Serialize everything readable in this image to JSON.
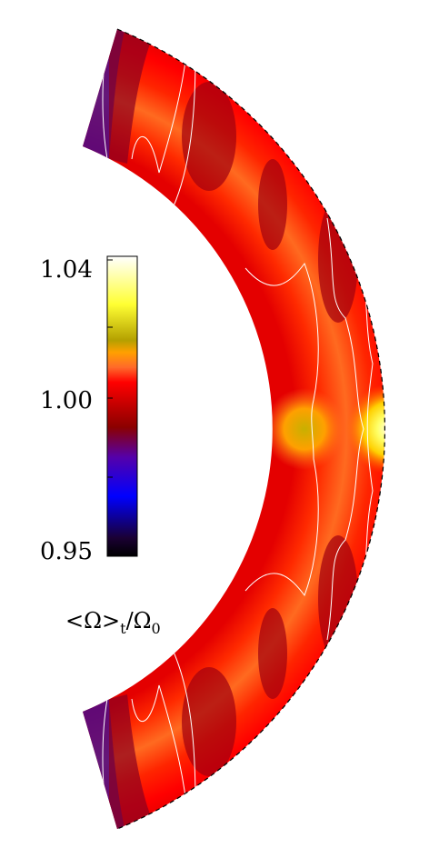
{
  "colorbar": {
    "ticks": [
      {
        "value": 1.04,
        "label": "1.04"
      },
      {
        "value": 1.0,
        "label": "1.00"
      },
      {
        "value": 0.95,
        "label": "0.95"
      }
    ],
    "title_main": "<Ω>",
    "title_sub": "t",
    "title_slash": "/Ω",
    "title_sub2": "0",
    "range": [
      0.95,
      1.04
    ],
    "stops": [
      "#000000",
      "#1a0033",
      "#0000ff",
      "#5500aa",
      "#8b0000",
      "#c00000",
      "#ff0000",
      "#ff6a2a",
      "#ffa000",
      "#b4a000",
      "#ffff33",
      "#ffffff"
    ]
  },
  "colors": {
    "background": "#ffffff",
    "contour": "#ffffff",
    "outline": "#000000"
  }
}
